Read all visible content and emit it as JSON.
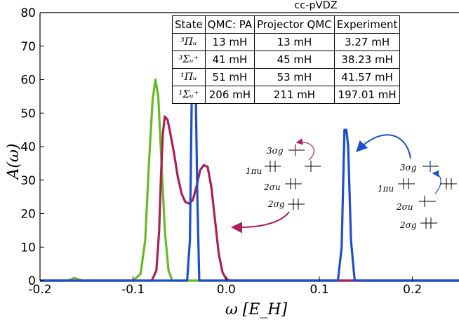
{
  "chart_data": {
    "type": "line",
    "xlabel": "ω [E_H]",
    "ylabel": "A(ω)",
    "xlim": [
      -0.2,
      0.25
    ],
    "ylim": [
      0,
      80
    ],
    "xticks": [
      "-0.2",
      "-0.1",
      "0.0",
      "0.1",
      "0.2"
    ],
    "yticks": [
      "0",
      "10",
      "20",
      "30",
      "40",
      "50",
      "60",
      "70",
      "80"
    ],
    "grid": false,
    "legend": "none",
    "series": [
      {
        "color": "#66bb22",
        "x": [
          -0.2,
          -0.17,
          -0.163,
          -0.155,
          -0.1,
          -0.092,
          -0.087,
          -0.083,
          -0.079,
          -0.076,
          -0.073,
          -0.07,
          -0.066,
          -0.062,
          -0.058,
          0.25
        ],
        "y": [
          0,
          0,
          0.8,
          0,
          0,
          2,
          12,
          35,
          54,
          60,
          55,
          38,
          15,
          3,
          0,
          0
        ]
      },
      {
        "color": "#aa1f5c",
        "x": [
          -0.2,
          -0.08,
          -0.075,
          -0.072,
          -0.07,
          -0.068,
          -0.066,
          -0.063,
          -0.06,
          -0.056,
          -0.052,
          -0.048,
          -0.044,
          -0.04,
          -0.036,
          -0.032,
          -0.028,
          -0.024,
          -0.02,
          -0.016,
          -0.012,
          -0.008,
          -0.004,
          0,
          0.004,
          0.25
        ],
        "y": [
          0,
          0,
          3,
          15,
          32,
          44,
          49,
          48,
          44,
          38,
          31,
          26,
          23.5,
          23,
          24,
          28,
          33,
          34.5,
          34,
          28,
          18,
          8,
          2.5,
          0.5,
          0,
          0
        ]
      },
      {
        "color": "#1d4fcc",
        "x": [
          -0.2,
          -0.042,
          -0.039,
          -0.037,
          -0.035,
          -0.033,
          -0.031,
          -0.029,
          0.12,
          0.124,
          0.127,
          0.129,
          0.131,
          0.134,
          0.138,
          0.25
        ],
        "y": [
          0,
          0,
          12,
          55,
          65,
          60,
          25,
          0,
          0,
          10,
          45,
          45,
          40,
          12,
          0,
          0
        ]
      }
    ]
  },
  "table": {
    "title": "cc-pVDZ",
    "headers": [
      "State",
      "QMC: PA",
      "Projector QMC",
      "Experiment"
    ],
    "rows": [
      [
        "³Πᵤ",
        "13 mH",
        "13 mH",
        "3.27 mH"
      ],
      [
        "³Σᵤ⁺",
        "41 mH",
        "45 mH",
        "38.23 mH"
      ],
      [
        "¹Πᵤ",
        "51 mH",
        "53 mH",
        "41.57 mH"
      ],
      [
        "¹Σᵤ⁺",
        "206 mH",
        "211 mH",
        "197.01 mH"
      ]
    ]
  },
  "diagrams": {
    "left": {
      "arrow_color": "#aa1f5c",
      "labels": [
        "3σg",
        "1πu",
        "2σu",
        "2σg"
      ]
    },
    "right": {
      "arrow_color": "#1d4fcc",
      "labels": [
        "3σg",
        "1πu",
        "2σu",
        "2σg"
      ]
    }
  }
}
